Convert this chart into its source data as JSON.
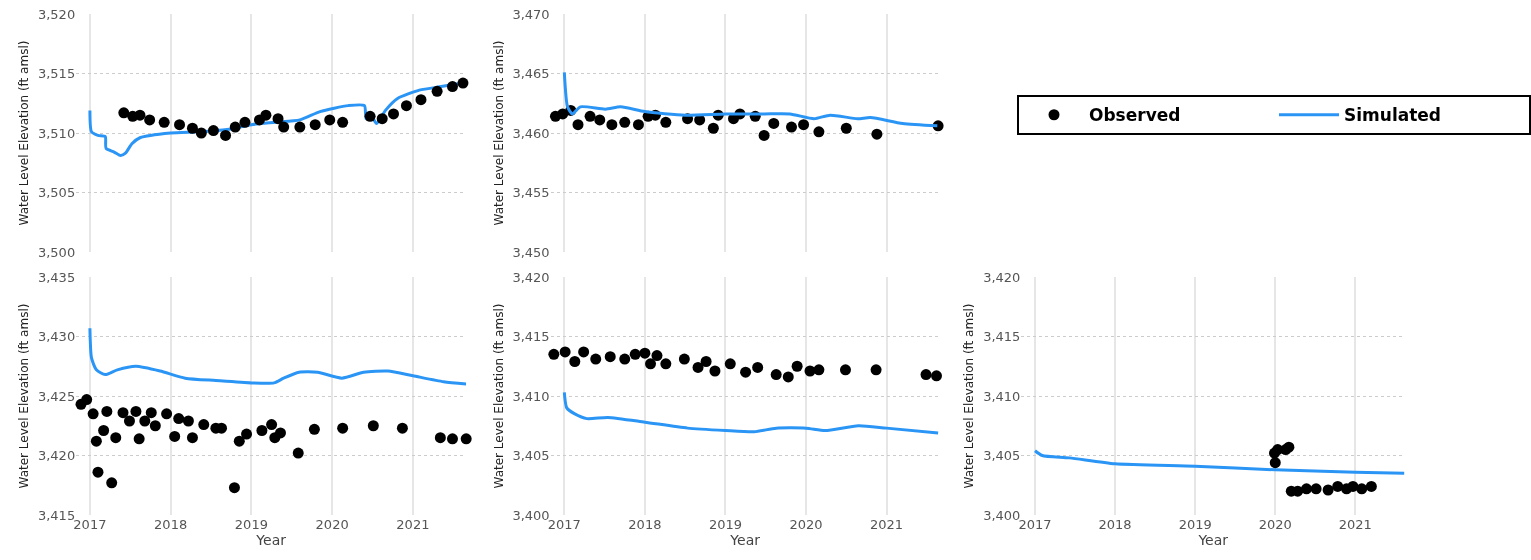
{
  "chart_data": [
    {
      "type": "scatter",
      "ylabel": "Water Level Elevation (ft amsl)",
      "xlim": [
        2016.83,
        2021.66
      ],
      "xticks": [
        2017,
        2018,
        2019,
        2020,
        2021
      ],
      "ylim": [
        3500,
        3520
      ],
      "yticks": [
        {
          "value": 3500,
          "label": "3,500"
        },
        {
          "value": 3505,
          "label": "3,505"
        },
        {
          "value": 3510,
          "label": "3,510"
        },
        {
          "value": 3515,
          "label": "3,515"
        },
        {
          "value": 3520,
          "label": "3,520"
        }
      ],
      "tick_labels": "y",
      "grid": true,
      "series": [
        {
          "type": "line",
          "color": "#2b95f5",
          "line_style": "solid",
          "marker": "none",
          "x": [
            2017.0,
            2017.02,
            2017.1,
            2017.19,
            2017.2,
            2017.3,
            2017.38,
            2017.44,
            2017.52,
            2017.62,
            2018.0,
            2018.35,
            2018.7,
            2019.0,
            2019.3,
            2019.6,
            2019.85,
            2020.2,
            2020.4,
            2020.42,
            2020.48,
            2020.55,
            2020.66,
            2020.81,
            2021.08,
            2021.35,
            2021.62
          ],
          "values": [
            3511.9,
            3510.1,
            3509.8,
            3509.7,
            3508.7,
            3508.4,
            3508.1,
            3508.3,
            3509.1,
            3509.6,
            3510.0,
            3510.1,
            3510.3,
            3510.7,
            3510.9,
            3511.1,
            3511.8,
            3512.3,
            3512.3,
            3511.2,
            3511.5,
            3510.8,
            3511.9,
            3512.9,
            3513.6,
            3513.9,
            3514.2
          ]
        },
        {
          "color": "#000000",
          "marker": "circle",
          "x": [
            2017.42,
            2017.53,
            2017.62,
            2017.74,
            2017.92,
            2018.11,
            2018.27,
            2018.38,
            2018.53,
            2018.68,
            2018.8,
            2018.92,
            2019.1,
            2019.18,
            2019.33,
            2019.4,
            2019.6,
            2019.79,
            2019.97,
            2020.13,
            2020.47,
            2020.62,
            2020.76,
            2020.92,
            2021.1,
            2021.3,
            2021.49,
            2021.62
          ],
          "values": [
            3511.7,
            3511.4,
            3511.5,
            3511.1,
            3510.9,
            3510.7,
            3510.4,
            3510.0,
            3510.2,
            3509.8,
            3510.5,
            3510.9,
            3511.1,
            3511.5,
            3511.2,
            3510.5,
            3510.5,
            3510.7,
            3511.1,
            3510.9,
            3511.4,
            3511.2,
            3511.6,
            3512.3,
            3512.8,
            3513.5,
            3513.9,
            3514.2
          ]
        }
      ]
    },
    {
      "type": "scatter",
      "ylabel": "Water Level Elevation (ft amsl)",
      "xlim": [
        2016.83,
        2021.66
      ],
      "xticks": [
        2017,
        2018,
        2019,
        2020,
        2021
      ],
      "ylim": [
        3450,
        3470
      ],
      "yticks": [
        {
          "value": 3450,
          "label": "3,450"
        },
        {
          "value": 3455,
          "label": "3,455"
        },
        {
          "value": 3460,
          "label": "3,460"
        },
        {
          "value": 3465,
          "label": "3,465"
        },
        {
          "value": 3470,
          "label": "3,470"
        }
      ],
      "tick_labels": "y",
      "grid": true,
      "legend": "right",
      "series": [
        {
          "name": "Observed",
          "color": "#000000",
          "marker": "circle",
          "x": [
            2016.89,
            2016.98,
            2017.08,
            2017.17,
            2017.32,
            2017.44,
            2017.59,
            2017.75,
            2017.92,
            2018.04,
            2018.13,
            2018.26,
            2018.53,
            2018.68,
            2018.85,
            2018.91,
            2019.1,
            2019.18,
            2019.37,
            2019.48,
            2019.6,
            2019.82,
            2019.97,
            2020.16,
            2020.5,
            2020.88,
            2021.64
          ],
          "values": [
            3461.4,
            3461.6,
            3461.9,
            3460.7,
            3461.4,
            3461.1,
            3460.7,
            3460.9,
            3460.7,
            3461.4,
            3461.5,
            3460.9,
            3461.2,
            3461.1,
            3460.4,
            3461.5,
            3461.2,
            3461.6,
            3461.4,
            3459.8,
            3460.8,
            3460.5,
            3460.7,
            3460.1,
            3460.4,
            3459.9,
            3460.6
          ]
        },
        {
          "type": "line",
          "name": "Simulated",
          "color": "#2b95f5",
          "line_style": "solid",
          "marker": "none",
          "x": [
            2017.0,
            2017.04,
            2017.1,
            2017.2,
            2017.51,
            2017.7,
            2018.0,
            2018.5,
            2019.0,
            2019.48,
            2019.8,
            2020.1,
            2020.3,
            2020.64,
            2020.8,
            2021.2,
            2021.63
          ],
          "values": [
            3465.1,
            3462.2,
            3461.6,
            3462.2,
            3462.0,
            3462.2,
            3461.8,
            3461.5,
            3461.6,
            3461.6,
            3461.6,
            3461.2,
            3461.5,
            3461.2,
            3461.3,
            3460.8,
            3460.6
          ]
        }
      ]
    },
    {
      "type": "scatter",
      "xlabel": "Year",
      "ylabel": "Water Level Elevation (ft amsl)",
      "xlim": [
        2016.83,
        2021.66
      ],
      "xticks": [
        2017,
        2018,
        2019,
        2020,
        2021
      ],
      "ylim": [
        3415,
        3435
      ],
      "yticks": [
        {
          "value": 3415,
          "label": "3,415"
        },
        {
          "value": 3420,
          "label": "3,420"
        },
        {
          "value": 3425,
          "label": "3,425"
        },
        {
          "value": 3430,
          "label": "3,430"
        },
        {
          "value": 3435,
          "label": "3,435"
        }
      ],
      "grid": true,
      "series": [
        {
          "type": "line",
          "color": "#2b95f5",
          "line_style": "solid",
          "marker": "none",
          "x": [
            2017.0,
            2017.02,
            2017.08,
            2017.19,
            2017.34,
            2017.57,
            2017.87,
            2018.18,
            2018.56,
            2019.0,
            2019.28,
            2019.4,
            2019.59,
            2019.82,
            2020.12,
            2020.39,
            2020.69,
            2021.0,
            2021.38,
            2021.66
          ],
          "values": [
            3430.7,
            3428.2,
            3427.2,
            3426.8,
            3427.2,
            3427.5,
            3427.1,
            3426.5,
            3426.3,
            3426.1,
            3426.1,
            3426.5,
            3427.0,
            3427.0,
            3426.5,
            3427.0,
            3427.1,
            3426.7,
            3426.2,
            3426.0
          ]
        },
        {
          "color": "#000000",
          "marker": "circle",
          "x": [
            2016.89,
            2016.96,
            2017.04,
            2017.08,
            2017.1,
            2017.17,
            2017.21,
            2017.27,
            2017.32,
            2017.41,
            2017.49,
            2017.57,
            2017.61,
            2017.68,
            2017.76,
            2017.81,
            2017.95,
            2018.05,
            2018.1,
            2018.22,
            2018.27,
            2018.41,
            2018.56,
            2018.63,
            2018.79,
            2018.85,
            2018.94,
            2019.13,
            2019.25,
            2019.29,
            2019.36,
            2019.58,
            2019.78,
            2020.13,
            2020.51,
            2020.87,
            2021.34,
            2021.49,
            2021.66
          ],
          "values": [
            3424.3,
            3424.7,
            3423.5,
            3421.2,
            3418.6,
            3422.1,
            3423.7,
            3417.7,
            3421.5,
            3423.6,
            3422.9,
            3423.7,
            3421.4,
            3422.9,
            3423.6,
            3422.5,
            3423.5,
            3421.6,
            3423.1,
            3422.9,
            3421.5,
            3422.6,
            3422.3,
            3422.3,
            3417.3,
            3421.2,
            3421.8,
            3422.1,
            3422.6,
            3421.5,
            3421.9,
            3420.2,
            3422.2,
            3422.3,
            3422.5,
            3422.3,
            3421.5,
            3421.4,
            3421.4
          ]
        }
      ]
    },
    {
      "type": "scatter",
      "xlabel": "Year",
      "ylabel": "Water Level Elevation (ft amsl)",
      "xlim": [
        2016.83,
        2021.66
      ],
      "xticks": [
        2017,
        2018,
        2019,
        2020,
        2021
      ],
      "ylim": [
        3400,
        3420
      ],
      "yticks": [
        {
          "value": 3400,
          "label": "3,400"
        },
        {
          "value": 3405,
          "label": "3,405"
        },
        {
          "value": 3410,
          "label": "3,410"
        },
        {
          "value": 3415,
          "label": "3,415"
        },
        {
          "value": 3420,
          "label": "3,420"
        }
      ],
      "grid": true,
      "series": [
        {
          "type": "line",
          "color": "#2b95f5",
          "line_style": "solid",
          "marker": "none",
          "x": [
            2017.0,
            2017.03,
            2017.13,
            2017.28,
            2017.54,
            2018.0,
            2018.53,
            2019.0,
            2019.36,
            2019.63,
            2020.0,
            2020.24,
            2020.65,
            2021.0,
            2021.64
          ],
          "values": [
            3410.3,
            3409.0,
            3408.5,
            3408.1,
            3408.2,
            3407.8,
            3407.3,
            3407.1,
            3407.0,
            3407.3,
            3407.3,
            3407.1,
            3407.5,
            3407.3,
            3406.9
          ]
        },
        {
          "color": "#000000",
          "marker": "circle",
          "x": [
            2016.87,
            2017.01,
            2017.13,
            2017.24,
            2017.39,
            2017.57,
            2017.75,
            2017.88,
            2018.0,
            2018.07,
            2018.15,
            2018.26,
            2018.49,
            2018.66,
            2018.76,
            2018.87,
            2019.06,
            2019.25,
            2019.4,
            2019.63,
            2019.78,
            2019.89,
            2020.05,
            2020.16,
            2020.49,
            2020.87,
            2021.49,
            2021.62
          ],
          "values": [
            3413.5,
            3413.7,
            3412.9,
            3413.7,
            3413.1,
            3413.3,
            3413.1,
            3413.5,
            3413.6,
            3412.7,
            3413.4,
            3412.7,
            3413.1,
            3412.4,
            3412.9,
            3412.1,
            3412.7,
            3412.0,
            3412.4,
            3411.8,
            3411.6,
            3412.5,
            3412.1,
            3412.2,
            3412.2,
            3412.2,
            3411.8,
            3411.7
          ]
        }
      ]
    },
    {
      "type": "scatter",
      "xlabel": "Year",
      "ylabel": "Water Level Elevation (ft amsl)",
      "xlim": [
        2016.83,
        2021.62
      ],
      "xticks": [
        2017,
        2018,
        2019,
        2020,
        2021
      ],
      "ylim": [
        3400,
        3420
      ],
      "yticks": [
        {
          "value": 3400,
          "label": "3,400"
        },
        {
          "value": 3405,
          "label": "3,405"
        },
        {
          "value": 3410,
          "label": "3,410"
        },
        {
          "value": 3415,
          "label": "3,415"
        },
        {
          "value": 3420,
          "label": "3,420"
        }
      ],
      "grid": true,
      "series": [
        {
          "type": "line",
          "color": "#2b95f5",
          "line_style": "solid",
          "marker": "none",
          "x": [
            2017.0,
            2017.09,
            2017.43,
            2018.0,
            2019.0,
            2020.0,
            2021.0,
            2021.61
          ],
          "values": [
            3405.4,
            3405.0,
            3404.8,
            3404.3,
            3404.1,
            3403.8,
            3403.6,
            3403.5
          ]
        },
        {
          "color": "#000000",
          "marker": "circle",
          "x": [
            2020.0,
            2019.99,
            2020.03,
            2020.13,
            2020.17,
            2020.2,
            2020.28,
            2020.39,
            2020.51,
            2020.66,
            2020.78,
            2020.89,
            2020.97,
            2021.08,
            2021.2
          ],
          "values": [
            3404.4,
            3405.2,
            3405.5,
            3405.5,
            3405.7,
            3402.0,
            3402.0,
            3402.2,
            3402.2,
            3402.1,
            3402.4,
            3402.2,
            3402.4,
            3402.2,
            3402.4
          ]
        }
      ]
    }
  ]
}
